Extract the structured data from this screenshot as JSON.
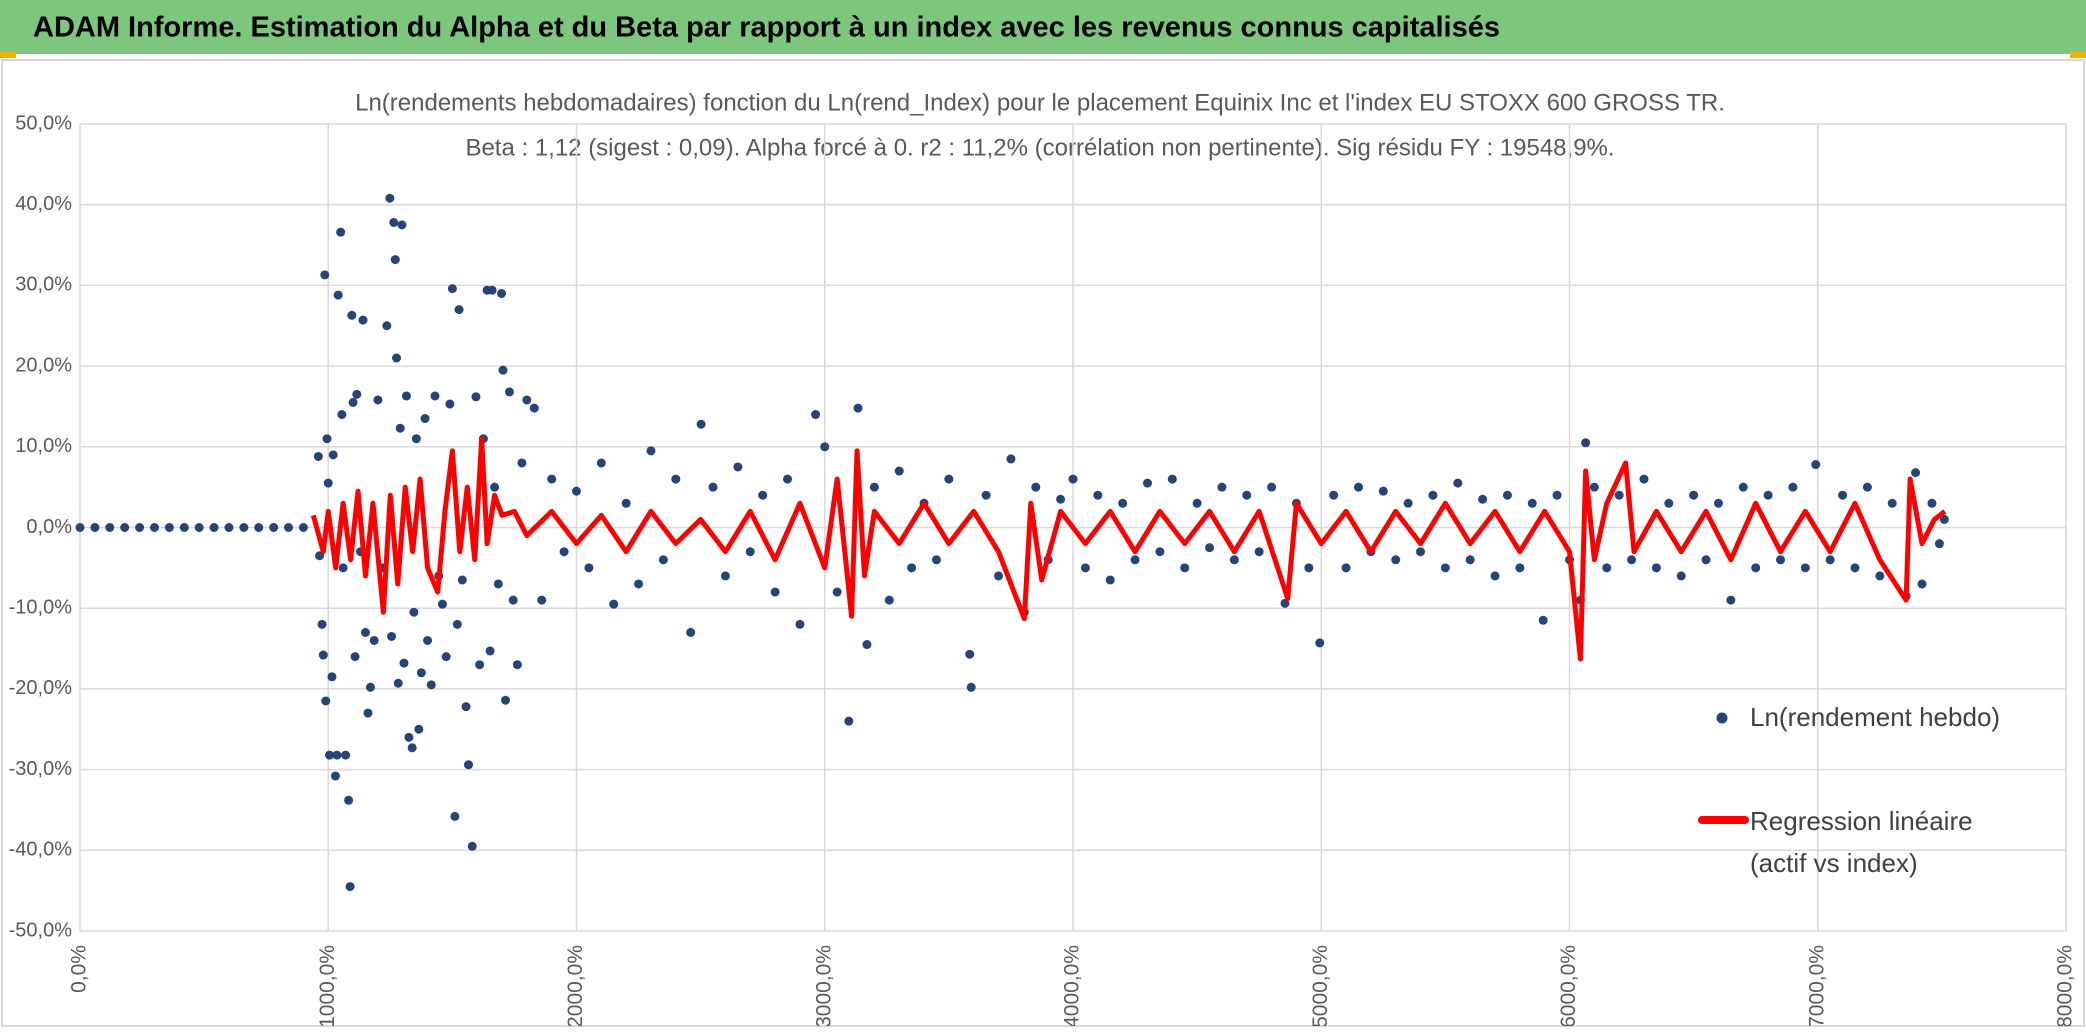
{
  "header": {
    "title": "ADAM Informe. Estimation du Alpha et du Beta par rapport à un index avec les revenus connus capitalisés"
  },
  "chart_data": {
    "type": "scatter",
    "title": "Ln(rendements hebdomadaires) fonction du Ln(rend_Index) pour le placement Equinix Inc et l'index EU STOXX 600 GROSS TR.",
    "subtitle": "Beta : 1,12 (sigest : 0,09). Alpha forcé à 0. r2 : 11,2% (corrélation non pertinente). Sig résidu FY : 19548,9%.",
    "xlim": [
      0,
      8000
    ],
    "xticks": [
      {
        "value": 0,
        "label": "0,0%"
      },
      {
        "value": 1000,
        "label": "1000,0%"
      },
      {
        "value": 2000,
        "label": "2000,0%"
      },
      {
        "value": 3000,
        "label": "3000,0%"
      },
      {
        "value": 4000,
        "label": "4000,0%"
      },
      {
        "value": 5000,
        "label": "5000,0%"
      },
      {
        "value": 6000,
        "label": "6000,0%"
      },
      {
        "value": 7000,
        "label": "7000,0%"
      },
      {
        "value": 8000,
        "label": "8000,0%"
      }
    ],
    "ylim": [
      -50,
      50
    ],
    "yticks": [
      {
        "value": -50,
        "label": "-50,0%"
      },
      {
        "value": -40,
        "label": "-40,0%"
      },
      {
        "value": -30,
        "label": "-30,0%"
      },
      {
        "value": -20,
        "label": "-20,0%"
      },
      {
        "value": -10,
        "label": "-10,0%"
      },
      {
        "value": 0,
        "label": "0,0%"
      },
      {
        "value": 10,
        "label": "10,0%"
      },
      {
        "value": 20,
        "label": "20,0%"
      },
      {
        "value": 30,
        "label": "30,0%"
      },
      {
        "value": 40,
        "label": "40,0%"
      },
      {
        "value": 50,
        "label": "50,0%"
      }
    ],
    "grid": true,
    "series": [
      {
        "name": "Ln(rendement hebdo)",
        "color": "#264478",
        "type": "scatter",
        "x": [
          0,
          60,
          120,
          180,
          240,
          300,
          360,
          420,
          480,
          540,
          600,
          660,
          720,
          780,
          840,
          900,
          960,
          965,
          975,
          980,
          986,
          990,
          995,
          1000,
          1005,
          1015,
          1020,
          1029,
          1035,
          1040,
          1050,
          1055,
          1060,
          1070,
          1082,
          1088,
          1095,
          1100,
          1108,
          1115,
          1130,
          1140,
          1150,
          1160,
          1170,
          1185,
          1200,
          1222,
          1236,
          1248,
          1255,
          1264,
          1270,
          1275,
          1282,
          1290,
          1297,
          1305,
          1315,
          1325,
          1338,
          1345,
          1355,
          1365,
          1375,
          1390,
          1400,
          1415,
          1430,
          1445,
          1460,
          1475,
          1490,
          1500,
          1510,
          1520,
          1527,
          1540,
          1555,
          1565,
          1580,
          1595,
          1610,
          1625,
          1640,
          1652,
          1660,
          1670,
          1685,
          1698,
          1704,
          1714,
          1730,
          1745,
          1762,
          1780,
          1800,
          1830,
          1860,
          1900,
          1950,
          2000,
          2050,
          2100,
          2150,
          2200,
          2250,
          2300,
          2350,
          2400,
          2460,
          2502,
          2550,
          2600,
          2650,
          2700,
          2750,
          2800,
          2850,
          2900,
          2963,
          3000,
          3050,
          3097,
          3134,
          3170,
          3200,
          3260,
          3300,
          3350,
          3400,
          3450,
          3500,
          3584,
          3590,
          3650,
          3700,
          3750,
          3804,
          3850,
          3900,
          3950,
          4000,
          4050,
          4100,
          4150,
          4200,
          4250,
          4300,
          4350,
          4400,
          4450,
          4500,
          4550,
          4600,
          4650,
          4700,
          4750,
          4800,
          4854,
          4900,
          4950,
          4994,
          5050,
          5100,
          5150,
          5200,
          5250,
          5300,
          5350,
          5400,
          5450,
          5500,
          5550,
          5600,
          5650,
          5700,
          5750,
          5800,
          5850,
          5894,
          5950,
          6000,
          6044,
          6065,
          6100,
          6150,
          6200,
          6250,
          6300,
          6350,
          6400,
          6450,
          6500,
          6550,
          6600,
          6650,
          6700,
          6750,
          6800,
          6850,
          6900,
          6950,
          6992,
          7050,
          7100,
          7150,
          7200,
          7250,
          7300,
          7356,
          7394,
          7420,
          7460,
          7490,
          7510
        ],
        "values": [
          0,
          0,
          0,
          0,
          0,
          0,
          0,
          0,
          0,
          0,
          0,
          0,
          0,
          0,
          0,
          0,
          8.8,
          -3.5,
          -12,
          -15.8,
          31.3,
          -21.5,
          11,
          5.5,
          -28.2,
          -18.5,
          9,
          -30.8,
          -28.2,
          28.8,
          36.6,
          14,
          -5,
          -28.2,
          -33.8,
          -44.5,
          26.3,
          15.5,
          -16,
          16.5,
          -3,
          25.7,
          -13,
          -23,
          -19.8,
          -14,
          15.8,
          -5,
          25,
          40.8,
          -13.5,
          37.8,
          33.2,
          21,
          -19.3,
          12.3,
          37.5,
          -16.8,
          16.3,
          -26,
          -27.3,
          -10.5,
          11,
          -25,
          -18,
          13.5,
          -14,
          -19.5,
          16.3,
          -6,
          -9.5,
          -16,
          15.3,
          29.6,
          -35.8,
          -12,
          27,
          -6.5,
          -22.2,
          -29.4,
          -39.5,
          16.2,
          -17,
          11,
          29.4,
          -15.3,
          29.4,
          5,
          -7,
          29,
          19.5,
          -21.4,
          16.8,
          -9,
          -17,
          8,
          15.8,
          14.8,
          -9,
          6,
          -3,
          4.5,
          -5,
          8,
          -9.5,
          3,
          -7,
          9.5,
          -4,
          6,
          -13,
          12.8,
          5,
          -6,
          7.5,
          -3,
          4,
          -8,
          6,
          -12,
          14,
          10,
          -8,
          -24,
          14.8,
          -14.5,
          5,
          -9,
          7,
          -5,
          3,
          -4,
          6,
          -15.7,
          -19.8,
          4,
          -6,
          8.5,
          -10.5,
          5,
          -4,
          3.5,
          6,
          -5,
          4,
          -6.5,
          3,
          -4,
          5.5,
          -3,
          6,
          -5,
          3,
          -2.5,
          5,
          -4,
          4,
          -3,
          5,
          -9.4,
          3,
          -5,
          -14.3,
          4,
          -5,
          5,
          -3,
          4.5,
          -4,
          3,
          -3,
          4,
          -5,
          5.5,
          -4,
          3.5,
          -6,
          4,
          -5,
          3,
          -11.5,
          4,
          -4,
          -9,
          10.5,
          5,
          -5,
          4,
          -4,
          6,
          -5,
          3,
          -6,
          4,
          -4,
          3,
          -9,
          5,
          -5,
          4,
          -4,
          5,
          -5,
          7.8,
          -4,
          4,
          -5,
          5,
          -6,
          3,
          -8.5,
          6.8,
          -7,
          3,
          -2,
          1
        ]
      },
      {
        "name": "Regression linéaire (actif vs index)",
        "color": "#ff0000",
        "type": "line",
        "x": [
          940,
          980,
          1000,
          1030,
          1060,
          1090,
          1120,
          1150,
          1180,
          1222,
          1250,
          1280,
          1310,
          1340,
          1370,
          1400,
          1441,
          1470,
          1500,
          1530,
          1560,
          1590,
          1618,
          1640,
          1670,
          1700,
          1750,
          1800,
          1900,
          2000,
          2100,
          2200,
          2300,
          2400,
          2500,
          2600,
          2700,
          2800,
          2900,
          3000,
          3050,
          3108,
          3130,
          3160,
          3200,
          3300,
          3400,
          3500,
          3600,
          3700,
          3804,
          3830,
          3874,
          3950,
          4050,
          4150,
          4250,
          4350,
          4450,
          4550,
          4650,
          4750,
          4865,
          4900,
          5000,
          5100,
          5200,
          5300,
          5400,
          5500,
          5600,
          5700,
          5800,
          5900,
          6000,
          6044,
          6065,
          6100,
          6150,
          6226,
          6260,
          6350,
          6450,
          6550,
          6650,
          6750,
          6850,
          6950,
          7050,
          7150,
          7250,
          7356,
          7372,
          7420,
          7470,
          7512
        ],
        "values": [
          1.5,
          -3,
          2,
          -5,
          3,
          -4,
          4.5,
          -6,
          3,
          -10.5,
          4,
          -7,
          5,
          -3,
          6,
          -5,
          -8,
          2,
          9.5,
          -3,
          5,
          -4,
          11,
          -2,
          4,
          1.5,
          2,
          -1,
          2,
          -2,
          1.5,
          -3,
          2,
          -2,
          1,
          -3,
          2,
          -4,
          3,
          -5,
          6,
          -11,
          9.5,
          -6,
          2,
          -2,
          3,
          -2,
          2,
          -3,
          -11.3,
          3,
          -6.5,
          2,
          -2,
          2,
          -3,
          2,
          -2,
          2,
          -3,
          2,
          -8.8,
          3,
          -2,
          2,
          -3,
          2,
          -2,
          3,
          -2,
          2,
          -3,
          2,
          -3,
          -16.3,
          7,
          -4,
          3,
          8,
          -3,
          2,
          -3,
          2,
          -4,
          3,
          -3,
          2,
          -3,
          3,
          -4,
          -9,
          6,
          -2,
          1,
          2
        ]
      }
    ]
  }
}
